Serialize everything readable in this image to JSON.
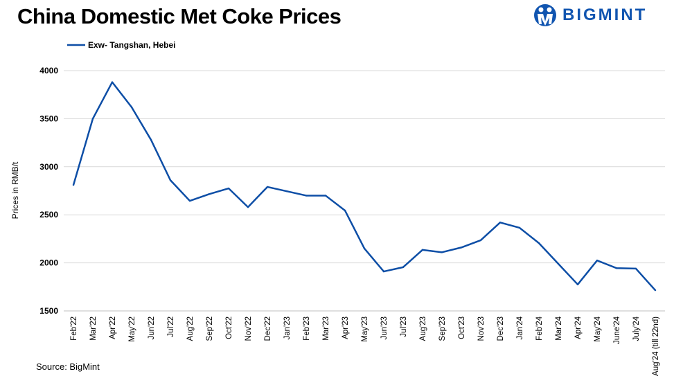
{
  "chart_data": {
    "type": "line",
    "title": "China Domestic Met Coke Prices",
    "ylabel": "Prices in RMB/t",
    "xlabel": "",
    "ylim": [
      1500,
      4000
    ],
    "yticks": [
      1500,
      2000,
      2500,
      3000,
      3500,
      4000
    ],
    "grid": true,
    "legend_position": "top-left",
    "categories": [
      "Feb'22",
      "Mar'22",
      "Apr'22",
      "May'22",
      "Jun'22",
      "Jul'22",
      "Aug'22",
      "Sep'22",
      "Oct'22",
      "Nov'22",
      "Dec'22",
      "Jan'23",
      "Feb'23",
      "Mar'23",
      "Apr'23",
      "May'23",
      "Jun'23",
      "Jul'23",
      "Aug'23",
      "Sep'23",
      "Oct'23",
      "Nov'23",
      "Dec'23",
      "Jan'24",
      "Feb'24",
      "Mar'24",
      "Apr'24",
      "May'24",
      "June'24",
      "July'24",
      "Aug'24 (till 22nd)"
    ],
    "series": [
      {
        "name": "Exw- Tangshan, Hebei",
        "color": "#0d4ea6",
        "values": [
          2810,
          3500,
          3880,
          3620,
          3280,
          2860,
          2645,
          2715,
          2775,
          2580,
          2790,
          2745,
          2700,
          2700,
          2545,
          2150,
          1910,
          1955,
          2135,
          2110,
          2160,
          2235,
          2420,
          2365,
          2205,
          1990,
          1775,
          2025,
          1945,
          1940,
          1715
        ]
      }
    ]
  },
  "source": "Source: BigMint",
  "logo": {
    "text": "BIGMINT",
    "color": "#1155b0"
  }
}
